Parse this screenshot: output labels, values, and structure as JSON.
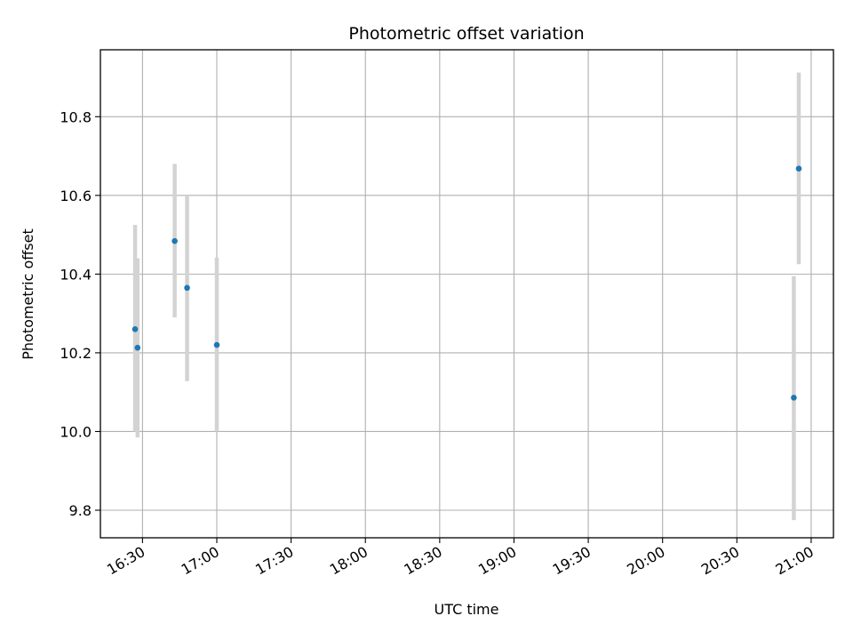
{
  "chart_data": {
    "type": "scatter",
    "title": "Photometric offset variation",
    "xlabel": "UTC time",
    "ylabel": "Photometric offset",
    "x_axis": {
      "kind": "time",
      "range": [
        "16:13",
        "21:09"
      ],
      "ticks": [
        "16:30",
        "17:00",
        "17:30",
        "18:00",
        "18:30",
        "19:00",
        "19:30",
        "20:00",
        "20:30",
        "21:00"
      ]
    },
    "y_axis": {
      "range": [
        9.73,
        10.97
      ],
      "ticks": [
        "9.8",
        "10.0",
        "10.2",
        "10.4",
        "10.6",
        "10.8"
      ]
    },
    "grid": true,
    "legend": "none",
    "colors": {
      "point": "#1f77b4",
      "errorbar": "#d3d3d3",
      "grid": "#b0b0b0"
    },
    "points": [
      {
        "time": "16:27",
        "y": 10.26,
        "y_low": 10.0,
        "y_high": 10.525
      },
      {
        "time": "16:28",
        "y": 10.213,
        "y_low": 9.985,
        "y_high": 10.44
      },
      {
        "time": "16:43",
        "y": 10.484,
        "y_low": 10.29,
        "y_high": 10.68
      },
      {
        "time": "16:48",
        "y": 10.365,
        "y_low": 10.128,
        "y_high": 10.6
      },
      {
        "time": "17:00",
        "y": 10.22,
        "y_low": 10.0,
        "y_high": 10.442
      },
      {
        "time": "20:53",
        "y": 10.086,
        "y_low": 9.775,
        "y_high": 10.395
      },
      {
        "time": "20:55",
        "y": 10.668,
        "y_low": 10.425,
        "y_high": 10.912
      }
    ]
  }
}
